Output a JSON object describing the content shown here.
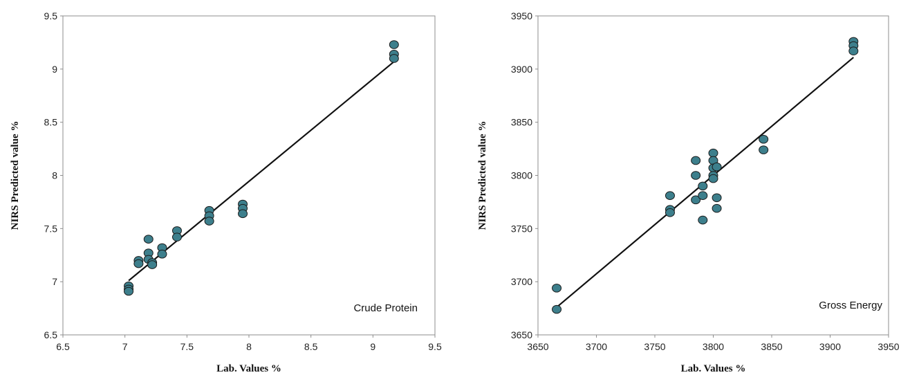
{
  "chart_data": [
    {
      "type": "scatter",
      "title": "",
      "annotation": "Crude Protein",
      "xlabel": "Lab. Values  %",
      "ylabel": "NIRS  Predicted value %",
      "xlim": [
        6.5,
        9.5
      ],
      "ylim": [
        6.5,
        9.5
      ],
      "xticks": [
        "6.5",
        "7",
        "7.5",
        "8",
        "8.5",
        "9",
        "9.5"
      ],
      "yticks": [
        "6.5",
        "7",
        "7.5",
        "8",
        "8.5",
        "9",
        "9.5"
      ],
      "grid": false,
      "point_color": "#3d7f8c",
      "points": [
        [
          7.03,
          6.96
        ],
        [
          7.03,
          6.93
        ],
        [
          7.03,
          6.91
        ],
        [
          7.11,
          7.2
        ],
        [
          7.11,
          7.17
        ],
        [
          7.19,
          7.4
        ],
        [
          7.19,
          7.27
        ],
        [
          7.19,
          7.21
        ],
        [
          7.22,
          7.18
        ],
        [
          7.22,
          7.16
        ],
        [
          7.3,
          7.32
        ],
        [
          7.3,
          7.26
        ],
        [
          7.42,
          7.48
        ],
        [
          7.42,
          7.42
        ],
        [
          7.68,
          7.67
        ],
        [
          7.68,
          7.62
        ],
        [
          7.68,
          7.57
        ],
        [
          7.95,
          7.73
        ],
        [
          7.95,
          7.69
        ],
        [
          7.95,
          7.64
        ],
        [
          9.17,
          9.23
        ],
        [
          9.17,
          9.14
        ],
        [
          9.17,
          9.1
        ]
      ],
      "fit_line": {
        "x": [
          7.03,
          9.17
        ],
        "y": [
          7.01,
          9.07
        ]
      }
    },
    {
      "type": "scatter",
      "title": "",
      "annotation": "Gross Energy",
      "xlabel": "Lab. Values %",
      "ylabel": "NIRS  Predicted value %",
      "xlim": [
        3650,
        3950
      ],
      "ylim": [
        3650,
        3950
      ],
      "xticks": [
        "3650",
        "3700",
        "3750",
        "3800",
        "3850",
        "3900",
        "3950"
      ],
      "yticks": [
        "3650",
        "3700",
        "3750",
        "3800",
        "3850",
        "3900",
        "3950"
      ],
      "grid": false,
      "point_color": "#3d7f8c",
      "points": [
        [
          3666,
          3694
        ],
        [
          3666,
          3674
        ],
        [
          3763,
          3781
        ],
        [
          3763,
          3768
        ],
        [
          3763,
          3765
        ],
        [
          3785,
          3814
        ],
        [
          3785,
          3800
        ],
        [
          3785,
          3777
        ],
        [
          3791,
          3790
        ],
        [
          3791,
          3781
        ],
        [
          3791,
          3758
        ],
        [
          3800,
          3821
        ],
        [
          3800,
          3814
        ],
        [
          3800,
          3807
        ],
        [
          3800,
          3800
        ],
        [
          3800,
          3797
        ],
        [
          3803,
          3808
        ],
        [
          3803,
          3779
        ],
        [
          3803,
          3769
        ],
        [
          3843,
          3834
        ],
        [
          3843,
          3824
        ],
        [
          3920,
          3926
        ],
        [
          3920,
          3922
        ],
        [
          3920,
          3917
        ]
      ],
      "fit_line": {
        "x": [
          3666,
          3920
        ],
        "y": [
          3676,
          3911
        ]
      }
    }
  ]
}
